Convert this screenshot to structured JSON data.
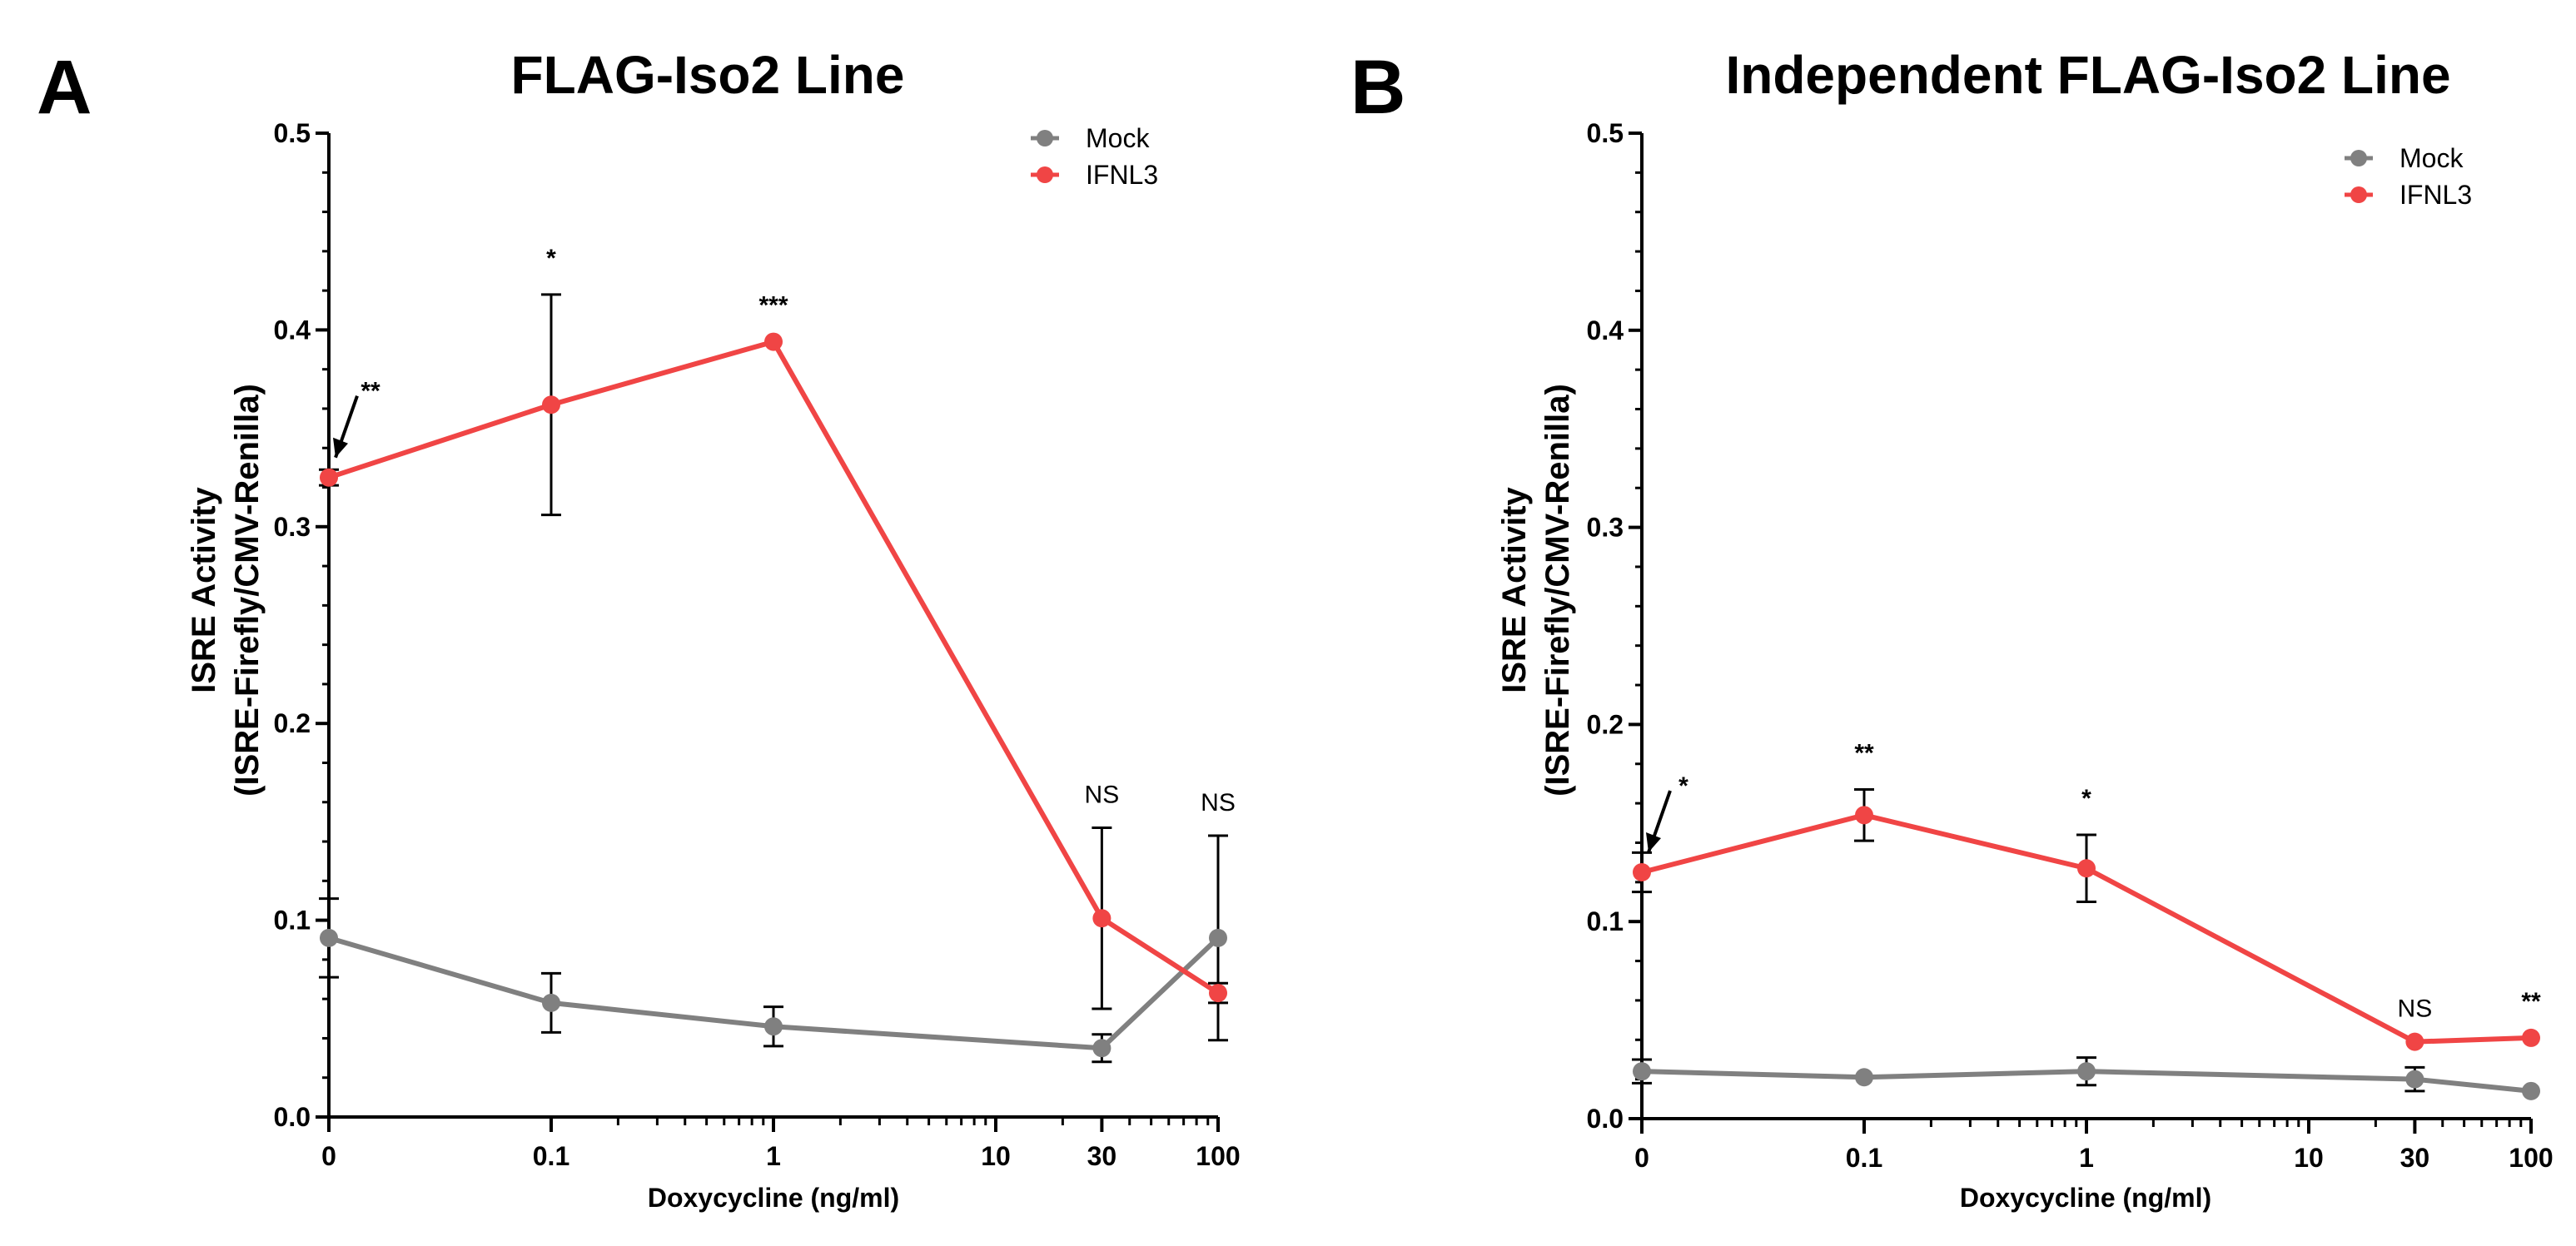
{
  "colors": {
    "mock": "#808080",
    "ifnl3": "#f04545",
    "axis": "#000000"
  },
  "chart_data": [
    {
      "panel": "A",
      "type": "line",
      "title": "FLAG-Iso2 Line",
      "xlabel": "Doxycycline (ng/ml)",
      "ylabel_line1": "ISRE Activity",
      "ylabel_line2": "(ISRE-Firefly/CMV-Renilla)",
      "ylim": [
        0,
        0.5
      ],
      "yticks": [
        "0.0",
        "0.1",
        "0.2",
        "0.3",
        "0.4",
        "0.5"
      ],
      "xticks": [
        "0",
        "0.1",
        "1",
        "10",
        "30",
        "100"
      ],
      "legend": [
        "Mock",
        "IFNL3"
      ],
      "series": [
        {
          "name": "Mock",
          "x": [
            "0",
            "0.1",
            "1",
            "30",
            "100"
          ],
          "values": [
            0.091,
            0.058,
            0.046,
            0.035,
            0.091
          ],
          "err": [
            0.02,
            0.015,
            0.01,
            0.007,
            0.052
          ]
        },
        {
          "name": "IFNL3",
          "x": [
            "0",
            "0.1",
            "1",
            "30",
            "100"
          ],
          "values": [
            0.325,
            0.362,
            0.394,
            0.101,
            0.063
          ],
          "err": [
            0.004,
            0.056,
            0.0,
            0.046,
            0.005
          ]
        }
      ],
      "annotations": [
        {
          "label": "**",
          "x": "0",
          "arrow": true
        },
        {
          "label": "*",
          "x": "0.1"
        },
        {
          "label": "***",
          "x": "1"
        },
        {
          "label": "NS",
          "x": "30"
        },
        {
          "label": "NS",
          "x": "100"
        }
      ]
    },
    {
      "panel": "B",
      "type": "line",
      "title": "Independent FLAG-Iso2 Line",
      "xlabel": "Doxycycline (ng/ml)",
      "ylabel_line1": "ISRE Activity",
      "ylabel_line2": "(ISRE-Firefly/CMV-Renilla)",
      "ylim": [
        0,
        0.5
      ],
      "yticks": [
        "0.0",
        "0.1",
        "0.2",
        "0.3",
        "0.4",
        "0.5"
      ],
      "xticks": [
        "0",
        "0.1",
        "1",
        "10",
        "30",
        "100"
      ],
      "legend": [
        "Mock",
        "IFNL3"
      ],
      "series": [
        {
          "name": "Mock",
          "x": [
            "0",
            "0.1",
            "1",
            "30",
            "100"
          ],
          "values": [
            0.024,
            0.021,
            0.024,
            0.02,
            0.014
          ],
          "err": [
            0.006,
            0.0,
            0.007,
            0.006,
            0.0
          ]
        },
        {
          "name": "IFNL3",
          "x": [
            "0",
            "0.1",
            "1",
            "30",
            "100"
          ],
          "values": [
            0.125,
            0.154,
            0.127,
            0.039,
            0.041
          ],
          "err": [
            0.01,
            0.013,
            0.017,
            0.0,
            0.0
          ]
        }
      ],
      "annotations": [
        {
          "label": "*",
          "x": "0",
          "arrow": true
        },
        {
          "label": "**",
          "x": "0.1"
        },
        {
          "label": "*",
          "x": "1"
        },
        {
          "label": "NS",
          "x": "30"
        },
        {
          "label": "**",
          "x": "100"
        }
      ]
    }
  ]
}
